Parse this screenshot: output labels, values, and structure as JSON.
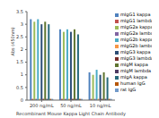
{
  "chart_data": {
    "type": "bar",
    "x_label": "Recombinant Mouse Kappa Light Chain Antibody",
    "y_label": "Abs (450nm)",
    "categories": [
      "200 ng/mL",
      "50 ng/mL",
      "10 ng/mL"
    ],
    "ylim": [
      0,
      3.5
    ],
    "yticks": [
      0,
      0.5,
      1,
      1.5,
      2,
      2.5,
      3,
      3.5
    ],
    "grid": false,
    "legend": "right",
    "series": [
      {
        "name": "mIgG1 kappa",
        "color": "#4f81bd",
        "values": [
          3.2,
          2.8,
          1.1
        ]
      },
      {
        "name": "mIgG1 lambda",
        "color": "#c0504d",
        "values": [
          0.05,
          0.05,
          0.05
        ]
      },
      {
        "name": "mIgG2a kappa",
        "color": "#9bbb59",
        "values": [
          3.1,
          2.7,
          1.0
        ]
      },
      {
        "name": "mIgG2a lambda",
        "color": "#8064a2",
        "values": [
          0.05,
          0.05,
          0.05
        ]
      },
      {
        "name": "mIgG2b kappa",
        "color": "#4bacc6",
        "values": [
          3.2,
          2.8,
          1.2
        ]
      },
      {
        "name": "mIgG2b lambda",
        "color": "#f79646",
        "values": [
          0.05,
          0.05,
          0.05
        ]
      },
      {
        "name": "mIgG3 kappa",
        "color": "#2c4d75",
        "values": [
          3.0,
          2.7,
          1.0
        ]
      },
      {
        "name": "mIgG3 lambda",
        "color": "#772c2a",
        "values": [
          0.05,
          0.05,
          0.05
        ]
      },
      {
        "name": "mIgM kappa",
        "color": "#5f7530",
        "values": [
          3.1,
          2.8,
          1.1
        ]
      },
      {
        "name": "mIgM lambda",
        "color": "#4d3b62",
        "values": [
          0.05,
          0.05,
          0.05
        ]
      },
      {
        "name": "mIgA kappa",
        "color": "#276a7c",
        "values": [
          3.0,
          2.6,
          0.9
        ]
      },
      {
        "name": "human IgG",
        "color": "#b65708",
        "values": [
          0.05,
          0.05,
          0.05
        ]
      },
      {
        "name": "rat IgG",
        "color": "#729aca",
        "values": [
          0.05,
          0.05,
          0.05
        ]
      }
    ]
  }
}
